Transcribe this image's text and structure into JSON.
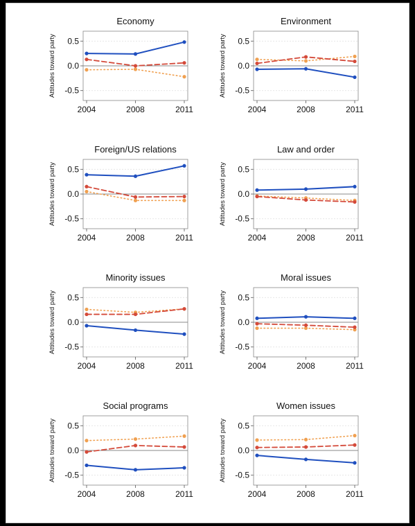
{
  "chart_data": [
    {
      "type": "line",
      "title": "Economy",
      "ylabel": "Attitudes toward party",
      "x": [
        "2004",
        "2008",
        "2011"
      ],
      "ylim": [
        -0.7,
        0.7
      ],
      "yticks": [
        "0.5",
        "0.0",
        "-0.5"
      ],
      "grid": true,
      "series": [
        {
          "values": [
            0.25,
            0.24,
            0.48
          ],
          "color": "#1f4fbf",
          "style": "solid"
        },
        {
          "values": [
            0.13,
            0.0,
            0.06
          ],
          "color": "#d44a3a",
          "style": "dashed"
        },
        {
          "values": [
            -0.08,
            -0.07,
            -0.22
          ],
          "color": "#f0a050",
          "style": "dotted"
        }
      ]
    },
    {
      "type": "line",
      "title": "Environment",
      "ylabel": "Attitudes toward party",
      "x": [
        "2004",
        "2008",
        "2011"
      ],
      "ylim": [
        -0.7,
        0.7
      ],
      "yticks": [
        "0.5",
        "0.0",
        "-0.5"
      ],
      "grid": true,
      "series": [
        {
          "values": [
            -0.07,
            -0.06,
            -0.23
          ],
          "color": "#1f4fbf",
          "style": "solid"
        },
        {
          "values": [
            0.05,
            0.18,
            0.09
          ],
          "color": "#d44a3a",
          "style": "dashed"
        },
        {
          "values": [
            0.13,
            0.1,
            0.19
          ],
          "color": "#f0a050",
          "style": "dotted"
        }
      ]
    },
    {
      "type": "line",
      "title": "Foreign/US relations",
      "ylabel": "Attitudes toward party",
      "x": [
        "2004",
        "2008",
        "2011"
      ],
      "ylim": [
        -0.7,
        0.7
      ],
      "yticks": [
        "0.5",
        "0.0",
        "-0.5"
      ],
      "grid": true,
      "series": [
        {
          "values": [
            0.39,
            0.36,
            0.57
          ],
          "color": "#1f4fbf",
          "style": "solid"
        },
        {
          "values": [
            0.15,
            -0.06,
            -0.05
          ],
          "color": "#d44a3a",
          "style": "dashed"
        },
        {
          "values": [
            0.05,
            -0.13,
            -0.13
          ],
          "color": "#f0a050",
          "style": "dotted"
        }
      ]
    },
    {
      "type": "line",
      "title": "Law and order",
      "ylabel": "Attitudes toward party",
      "x": [
        "2004",
        "2008",
        "2011"
      ],
      "ylim": [
        -0.7,
        0.7
      ],
      "yticks": [
        "0.5",
        "0.0",
        "-0.5"
      ],
      "grid": true,
      "series": [
        {
          "values": [
            0.08,
            0.1,
            0.15
          ],
          "color": "#1f4fbf",
          "style": "solid"
        },
        {
          "values": [
            -0.05,
            -0.12,
            -0.16
          ],
          "color": "#d44a3a",
          "style": "dashed"
        },
        {
          "values": [
            -0.04,
            -0.08,
            -0.13
          ],
          "color": "#f0a050",
          "style": "dotted"
        }
      ]
    },
    {
      "type": "line",
      "title": "Minority issues",
      "ylabel": "Attitudes toward party",
      "x": [
        "2004",
        "2008",
        "2011"
      ],
      "ylim": [
        -0.7,
        0.7
      ],
      "yticks": [
        "0.5",
        "0.0",
        "-0.5"
      ],
      "grid": true,
      "series": [
        {
          "values": [
            -0.07,
            -0.16,
            -0.24
          ],
          "color": "#1f4fbf",
          "style": "solid"
        },
        {
          "values": [
            0.16,
            0.16,
            0.27
          ],
          "color": "#d44a3a",
          "style": "dashed"
        },
        {
          "values": [
            0.26,
            0.2,
            0.27
          ],
          "color": "#f0a050",
          "style": "dotted"
        }
      ]
    },
    {
      "type": "line",
      "title": "Moral issues",
      "ylabel": "Attitudes toward party",
      "x": [
        "2004",
        "2008",
        "2011"
      ],
      "ylim": [
        -0.7,
        0.7
      ],
      "yticks": [
        "0.5",
        "0.0",
        "-0.5"
      ],
      "grid": true,
      "series": [
        {
          "values": [
            0.08,
            0.11,
            0.08
          ],
          "color": "#1f4fbf",
          "style": "solid"
        },
        {
          "values": [
            -0.03,
            -0.06,
            -0.1
          ],
          "color": "#d44a3a",
          "style": "dashed"
        },
        {
          "values": [
            -0.12,
            -0.12,
            -0.15
          ],
          "color": "#f0a050",
          "style": "dotted"
        }
      ]
    },
    {
      "type": "line",
      "title": "Social programs",
      "ylabel": "Attitudes toward party",
      "x": [
        "2004",
        "2008",
        "2011"
      ],
      "ylim": [
        -0.7,
        0.7
      ],
      "yticks": [
        "0.5",
        "0.0",
        "-0.5"
      ],
      "grid": true,
      "series": [
        {
          "values": [
            -0.3,
            -0.39,
            -0.35
          ],
          "color": "#1f4fbf",
          "style": "solid"
        },
        {
          "values": [
            -0.03,
            0.1,
            0.07
          ],
          "color": "#d44a3a",
          "style": "dashed"
        },
        {
          "values": [
            0.2,
            0.23,
            0.29
          ],
          "color": "#f0a050",
          "style": "dotted"
        }
      ]
    },
    {
      "type": "line",
      "title": "Women issues",
      "ylabel": "Attitudes toward party",
      "x": [
        "2004",
        "2008",
        "2011"
      ],
      "ylim": [
        -0.7,
        0.7
      ],
      "yticks": [
        "0.5",
        "0.0",
        "-0.5"
      ],
      "grid": true,
      "series": [
        {
          "values": [
            -0.1,
            -0.18,
            -0.25
          ],
          "color": "#1f4fbf",
          "style": "solid"
        },
        {
          "values": [
            0.06,
            0.07,
            0.11
          ],
          "color": "#d44a3a",
          "style": "dashed"
        },
        {
          "values": [
            0.21,
            0.22,
            0.3
          ],
          "color": "#f0a050",
          "style": "dotted"
        }
      ]
    }
  ]
}
